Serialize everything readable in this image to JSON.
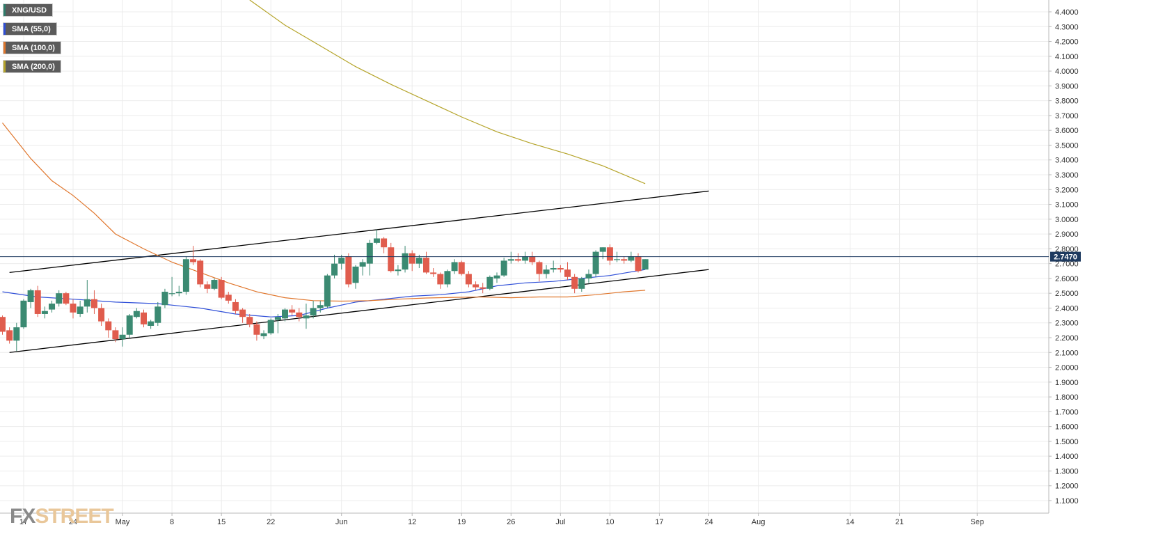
{
  "legend": [
    {
      "label": "XNG/USD",
      "color": "#2e7d6b"
    },
    {
      "label": "SMA (55,0)",
      "color": "#2f4fd8"
    },
    {
      "label": "SMA (100,0)",
      "color": "#e0762c"
    },
    {
      "label": "SMA (200,0)",
      "color": "#b5a42a"
    }
  ],
  "logo": {
    "part1": "FX",
    "part2": "STREET"
  },
  "colors": {
    "up": "#3b8a72",
    "down": "#e05c4d",
    "sma55": "#2f4fd8",
    "sma100": "#e0762c",
    "sma200": "#b5a42a",
    "channel": "#000000",
    "price_line": "#1e3a5f",
    "grid": "#ececec"
  },
  "chart_data": {
    "type": "candlestick",
    "title": "",
    "symbol": "XNG/USD",
    "last_price": "2.7470",
    "ylim": [
      1.05,
      4.45
    ],
    "y_ticks": [
      "1.1000",
      "1.2000",
      "1.3000",
      "1.4000",
      "1.5000",
      "1.6000",
      "1.7000",
      "1.8000",
      "1.9000",
      "2.0000",
      "2.1000",
      "2.2000",
      "2.3000",
      "2.4000",
      "2.5000",
      "2.6000",
      "2.7000",
      "2.8000",
      "2.9000",
      "3.0000",
      "3.1000",
      "3.2000",
      "3.3000",
      "3.4000",
      "3.5000",
      "3.6000",
      "3.7000",
      "3.8000",
      "3.9000",
      "4.0000",
      "4.1000",
      "4.2000",
      "4.3000",
      "4.4000"
    ],
    "x_ticks": [
      {
        "label": "17",
        "day": 3
      },
      {
        "label": "24",
        "day": 10
      },
      {
        "label": "May",
        "day": 17
      },
      {
        "label": "8",
        "day": 24
      },
      {
        "label": "15",
        "day": 31
      },
      {
        "label": "22",
        "day": 38
      },
      {
        "label": "Jun",
        "day": 48
      },
      {
        "label": "12",
        "day": 58
      },
      {
        "label": "19",
        "day": 65
      },
      {
        "label": "26",
        "day": 72
      },
      {
        "label": "Jul",
        "day": 79
      },
      {
        "label": "10",
        "day": 86
      },
      {
        "label": "17",
        "day": 93
      },
      {
        "label": "24",
        "day": 100
      },
      {
        "label": "Aug",
        "day": 107
      },
      {
        "label": "14",
        "day": 120
      },
      {
        "label": "21",
        "day": 127
      },
      {
        "label": "Sep",
        "day": 138
      }
    ],
    "candles": [
      {
        "day": 0,
        "o": 2.34,
        "h": 2.35,
        "l": 2.22,
        "c": 2.24
      },
      {
        "day": 1,
        "o": 2.25,
        "h": 2.27,
        "l": 2.16,
        "c": 2.18
      },
      {
        "day": 2,
        "o": 2.18,
        "h": 2.3,
        "l": 2.11,
        "c": 2.27
      },
      {
        "day": 3,
        "o": 2.27,
        "h": 2.46,
        "l": 2.26,
        "c": 2.45
      },
      {
        "day": 4,
        "o": 2.44,
        "h": 2.53,
        "l": 2.4,
        "c": 2.52
      },
      {
        "day": 5,
        "o": 2.52,
        "h": 2.55,
        "l": 2.34,
        "c": 2.36
      },
      {
        "day": 6,
        "o": 2.36,
        "h": 2.41,
        "l": 2.33,
        "c": 2.38
      },
      {
        "day": 7,
        "o": 2.39,
        "h": 2.45,
        "l": 2.37,
        "c": 2.43
      },
      {
        "day": 8,
        "o": 2.43,
        "h": 2.52,
        "l": 2.41,
        "c": 2.5
      },
      {
        "day": 9,
        "o": 2.5,
        "h": 2.51,
        "l": 2.42,
        "c": 2.43
      },
      {
        "day": 10,
        "o": 2.43,
        "h": 2.46,
        "l": 2.33,
        "c": 2.37
      },
      {
        "day": 11,
        "o": 2.36,
        "h": 2.45,
        "l": 2.34,
        "c": 2.41
      },
      {
        "day": 12,
        "o": 2.41,
        "h": 2.59,
        "l": 2.37,
        "c": 2.46
      },
      {
        "day": 13,
        "o": 2.46,
        "h": 2.52,
        "l": 2.36,
        "c": 2.4
      },
      {
        "day": 14,
        "o": 2.4,
        "h": 2.43,
        "l": 2.28,
        "c": 2.31
      },
      {
        "day": 15,
        "o": 2.31,
        "h": 2.33,
        "l": 2.2,
        "c": 2.25
      },
      {
        "day": 16,
        "o": 2.25,
        "h": 2.27,
        "l": 2.17,
        "c": 2.19
      },
      {
        "day": 17,
        "o": 2.19,
        "h": 2.27,
        "l": 2.14,
        "c": 2.22
      },
      {
        "day": 18,
        "o": 2.22,
        "h": 2.36,
        "l": 2.2,
        "c": 2.35
      },
      {
        "day": 19,
        "o": 2.34,
        "h": 2.4,
        "l": 2.33,
        "c": 2.38
      },
      {
        "day": 20,
        "o": 2.37,
        "h": 2.39,
        "l": 2.27,
        "c": 2.29
      },
      {
        "day": 21,
        "o": 2.28,
        "h": 2.32,
        "l": 2.26,
        "c": 2.31
      },
      {
        "day": 22,
        "o": 2.3,
        "h": 2.44,
        "l": 2.28,
        "c": 2.41
      },
      {
        "day": 23,
        "o": 2.42,
        "h": 2.53,
        "l": 2.4,
        "c": 2.51
      },
      {
        "day": 24,
        "o": 2.5,
        "h": 2.61,
        "l": 2.48,
        "c": 2.5
      },
      {
        "day": 25,
        "o": 2.5,
        "h": 2.55,
        "l": 2.48,
        "c": 2.51
      },
      {
        "day": 26,
        "o": 2.51,
        "h": 2.75,
        "l": 2.49,
        "c": 2.73
      },
      {
        "day": 27,
        "o": 2.73,
        "h": 2.82,
        "l": 2.69,
        "c": 2.71
      },
      {
        "day": 28,
        "o": 2.72,
        "h": 2.73,
        "l": 2.54,
        "c": 2.56
      },
      {
        "day": 29,
        "o": 2.56,
        "h": 2.58,
        "l": 2.5,
        "c": 2.53
      },
      {
        "day": 30,
        "o": 2.53,
        "h": 2.6,
        "l": 2.52,
        "c": 2.59
      },
      {
        "day": 31,
        "o": 2.59,
        "h": 2.61,
        "l": 2.46,
        "c": 2.47
      },
      {
        "day": 32,
        "o": 2.49,
        "h": 2.51,
        "l": 2.43,
        "c": 2.45
      },
      {
        "day": 33,
        "o": 2.44,
        "h": 2.46,
        "l": 2.36,
        "c": 2.38
      },
      {
        "day": 34,
        "o": 2.39,
        "h": 2.4,
        "l": 2.3,
        "c": 2.34
      },
      {
        "day": 35,
        "o": 2.34,
        "h": 2.36,
        "l": 2.27,
        "c": 2.29
      },
      {
        "day": 36,
        "o": 2.29,
        "h": 2.31,
        "l": 2.18,
        "c": 2.22
      },
      {
        "day": 37,
        "o": 2.21,
        "h": 2.25,
        "l": 2.19,
        "c": 2.23
      },
      {
        "day": 38,
        "o": 2.23,
        "h": 2.33,
        "l": 2.22,
        "c": 2.32
      },
      {
        "day": 39,
        "o": 2.32,
        "h": 2.36,
        "l": 2.23,
        "c": 2.34
      },
      {
        "day": 40,
        "o": 2.33,
        "h": 2.4,
        "l": 2.31,
        "c": 2.39
      },
      {
        "day": 41,
        "o": 2.39,
        "h": 2.42,
        "l": 2.35,
        "c": 2.37
      },
      {
        "day": 42,
        "o": 2.37,
        "h": 2.4,
        "l": 2.31,
        "c": 2.34
      },
      {
        "day": 43,
        "o": 2.33,
        "h": 2.43,
        "l": 2.26,
        "c": 2.35
      },
      {
        "day": 44,
        "o": 2.35,
        "h": 2.45,
        "l": 2.33,
        "c": 2.4
      },
      {
        "day": 45,
        "o": 2.4,
        "h": 2.45,
        "l": 2.37,
        "c": 2.42
      },
      {
        "day": 46,
        "o": 2.41,
        "h": 2.63,
        "l": 2.4,
        "c": 2.62
      },
      {
        "day": 47,
        "o": 2.62,
        "h": 2.76,
        "l": 2.6,
        "c": 2.7
      },
      {
        "day": 48,
        "o": 2.7,
        "h": 2.76,
        "l": 2.66,
        "c": 2.74
      },
      {
        "day": 49,
        "o": 2.75,
        "h": 2.77,
        "l": 2.54,
        "c": 2.56
      },
      {
        "day": 50,
        "o": 2.57,
        "h": 2.69,
        "l": 2.53,
        "c": 2.68
      },
      {
        "day": 51,
        "o": 2.68,
        "h": 2.73,
        "l": 2.62,
        "c": 2.71
      },
      {
        "day": 52,
        "o": 2.7,
        "h": 2.86,
        "l": 2.62,
        "c": 2.84
      },
      {
        "day": 53,
        "o": 2.84,
        "h": 2.93,
        "l": 2.83,
        "c": 2.87
      },
      {
        "day": 54,
        "o": 2.87,
        "h": 2.88,
        "l": 2.77,
        "c": 2.81
      },
      {
        "day": 55,
        "o": 2.81,
        "h": 2.84,
        "l": 2.64,
        "c": 2.65
      },
      {
        "day": 56,
        "o": 2.65,
        "h": 2.69,
        "l": 2.62,
        "c": 2.66
      },
      {
        "day": 57,
        "o": 2.66,
        "h": 2.82,
        "l": 2.64,
        "c": 2.77
      },
      {
        "day": 58,
        "o": 2.77,
        "h": 2.79,
        "l": 2.65,
        "c": 2.7
      },
      {
        "day": 59,
        "o": 2.7,
        "h": 2.76,
        "l": 2.67,
        "c": 2.74
      },
      {
        "day": 60,
        "o": 2.74,
        "h": 2.78,
        "l": 2.63,
        "c": 2.64
      },
      {
        "day": 61,
        "o": 2.64,
        "h": 2.67,
        "l": 2.61,
        "c": 2.63
      },
      {
        "day": 62,
        "o": 2.63,
        "h": 2.64,
        "l": 2.53,
        "c": 2.56
      },
      {
        "day": 63,
        "o": 2.56,
        "h": 2.66,
        "l": 2.54,
        "c": 2.65
      },
      {
        "day": 64,
        "o": 2.65,
        "h": 2.73,
        "l": 2.63,
        "c": 2.71
      },
      {
        "day": 65,
        "o": 2.71,
        "h": 2.72,
        "l": 2.62,
        "c": 2.63
      },
      {
        "day": 66,
        "o": 2.63,
        "h": 2.65,
        "l": 2.54,
        "c": 2.56
      },
      {
        "day": 67,
        "o": 2.56,
        "h": 2.58,
        "l": 2.52,
        "c": 2.54
      },
      {
        "day": 68,
        "o": 2.54,
        "h": 2.57,
        "l": 2.5,
        "c": 2.53
      },
      {
        "day": 69,
        "o": 2.53,
        "h": 2.62,
        "l": 2.52,
        "c": 2.61
      },
      {
        "day": 70,
        "o": 2.6,
        "h": 2.64,
        "l": 2.57,
        "c": 2.62
      },
      {
        "day": 71,
        "o": 2.62,
        "h": 2.74,
        "l": 2.61,
        "c": 2.72
      },
      {
        "day": 72,
        "o": 2.72,
        "h": 2.78,
        "l": 2.7,
        "c": 2.73
      },
      {
        "day": 73,
        "o": 2.73,
        "h": 2.77,
        "l": 2.71,
        "c": 2.72
      },
      {
        "day": 74,
        "o": 2.72,
        "h": 2.78,
        "l": 2.7,
        "c": 2.75
      },
      {
        "day": 75,
        "o": 2.75,
        "h": 2.78,
        "l": 2.69,
        "c": 2.71
      },
      {
        "day": 76,
        "o": 2.71,
        "h": 2.72,
        "l": 2.58,
        "c": 2.63
      },
      {
        "day": 77,
        "o": 2.63,
        "h": 2.69,
        "l": 2.6,
        "c": 2.66
      },
      {
        "day": 78,
        "o": 2.66,
        "h": 2.72,
        "l": 2.64,
        "c": 2.67
      },
      {
        "day": 79,
        "o": 2.67,
        "h": 2.69,
        "l": 2.64,
        "c": 2.66
      },
      {
        "day": 80,
        "o": 2.66,
        "h": 2.71,
        "l": 2.59,
        "c": 2.61
      },
      {
        "day": 81,
        "o": 2.61,
        "h": 2.63,
        "l": 2.5,
        "c": 2.53
      },
      {
        "day": 82,
        "o": 2.53,
        "h": 2.61,
        "l": 2.51,
        "c": 2.6
      },
      {
        "day": 83,
        "o": 2.6,
        "h": 2.66,
        "l": 2.57,
        "c": 2.63
      },
      {
        "day": 84,
        "o": 2.63,
        "h": 2.79,
        "l": 2.61,
        "c": 2.78
      },
      {
        "day": 85,
        "o": 2.78,
        "h": 2.81,
        "l": 2.73,
        "c": 2.81
      },
      {
        "day": 86,
        "o": 2.81,
        "h": 2.83,
        "l": 2.69,
        "c": 2.72
      },
      {
        "day": 87,
        "o": 2.73,
        "h": 2.78,
        "l": 2.71,
        "c": 2.73
      },
      {
        "day": 88,
        "o": 2.73,
        "h": 2.75,
        "l": 2.7,
        "c": 2.72
      },
      {
        "day": 89,
        "o": 2.72,
        "h": 2.78,
        "l": 2.71,
        "c": 2.75
      },
      {
        "day": 90,
        "o": 2.75,
        "h": 2.77,
        "l": 2.64,
        "c": 2.65
      },
      {
        "day": 91,
        "o": 2.66,
        "h": 2.73,
        "l": 2.66,
        "c": 2.73
      }
    ],
    "series": [
      {
        "name": "SMA (55,0)",
        "color": "#2f4fd8",
        "points": [
          [
            0,
            2.51
          ],
          [
            5,
            2.475
          ],
          [
            10,
            2.46
          ],
          [
            16,
            2.44
          ],
          [
            22,
            2.43
          ],
          [
            28,
            2.4
          ],
          [
            33,
            2.36
          ],
          [
            38,
            2.34
          ],
          [
            42,
            2.35
          ],
          [
            46,
            2.4
          ],
          [
            50,
            2.44
          ],
          [
            54,
            2.46
          ],
          [
            58,
            2.48
          ],
          [
            62,
            2.49
          ],
          [
            66,
            2.51
          ],
          [
            70,
            2.55
          ],
          [
            74,
            2.57
          ],
          [
            78,
            2.58
          ],
          [
            82,
            2.6
          ],
          [
            86,
            2.62
          ],
          [
            91,
            2.66
          ]
        ]
      },
      {
        "name": "SMA (100,0)",
        "color": "#e0762c",
        "points": [
          [
            0,
            3.65
          ],
          [
            4,
            3.41
          ],
          [
            7,
            3.26
          ],
          [
            10,
            3.16
          ],
          [
            13,
            3.04
          ],
          [
            16,
            2.9
          ],
          [
            20,
            2.8
          ],
          [
            24,
            2.71
          ],
          [
            28,
            2.64
          ],
          [
            32,
            2.57
          ],
          [
            36,
            2.51
          ],
          [
            40,
            2.47
          ],
          [
            44,
            2.45
          ],
          [
            48,
            2.447
          ],
          [
            52,
            2.45
          ],
          [
            56,
            2.46
          ],
          [
            60,
            2.468
          ],
          [
            64,
            2.472
          ],
          [
            68,
            2.475
          ],
          [
            72,
            2.47
          ],
          [
            76,
            2.475
          ],
          [
            80,
            2.475
          ],
          [
            84,
            2.49
          ],
          [
            88,
            2.51
          ],
          [
            91,
            2.52
          ]
        ]
      },
      {
        "name": "SMA (200,0)",
        "color": "#b5a42a",
        "points": [
          [
            35,
            4.48
          ],
          [
            40,
            4.31
          ],
          [
            45,
            4.17
          ],
          [
            50,
            4.03
          ],
          [
            55,
            3.91
          ],
          [
            60,
            3.8
          ],
          [
            65,
            3.69
          ],
          [
            70,
            3.59
          ],
          [
            75,
            3.51
          ],
          [
            80,
            3.44
          ],
          [
            85,
            3.36
          ],
          [
            91,
            3.24
          ]
        ]
      }
    ],
    "channel_lines": [
      {
        "x": [
          1,
          100
        ],
        "y": [
          2.64,
          3.19
        ]
      },
      {
        "x": [
          1,
          100
        ],
        "y": [
          2.1,
          2.66
        ]
      }
    ],
    "price_line": 2.747
  }
}
